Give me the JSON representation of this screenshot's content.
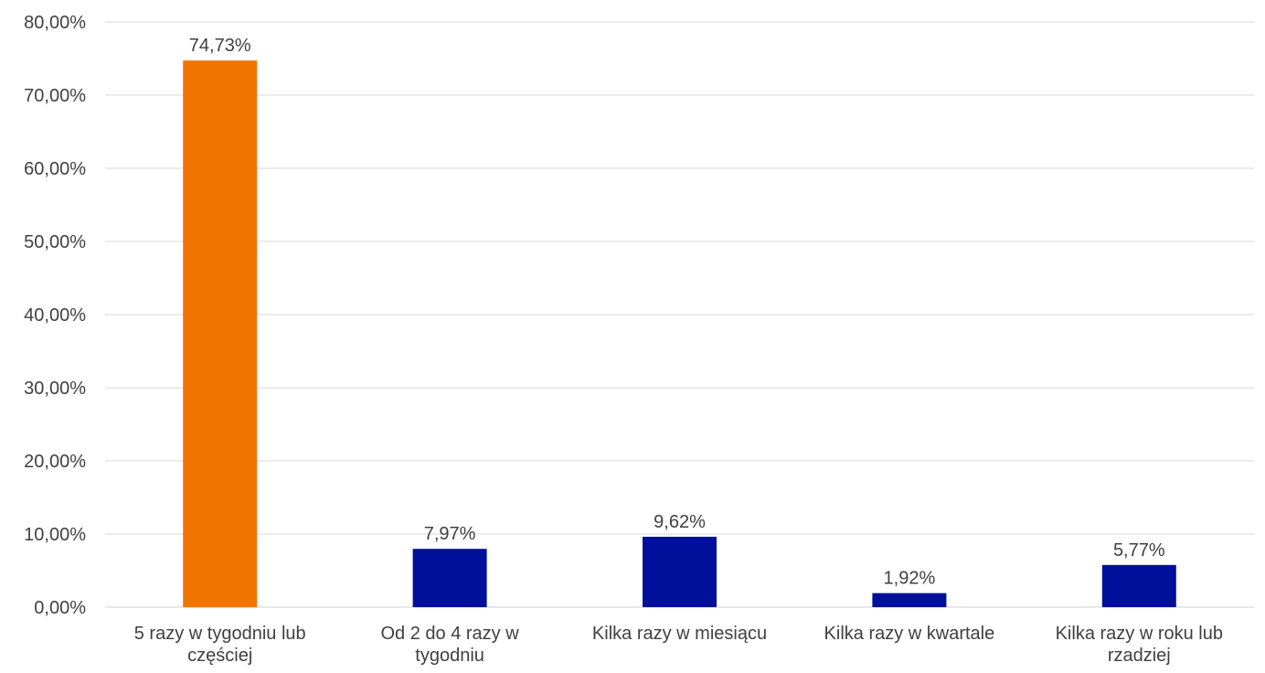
{
  "chart_data": {
    "type": "bar",
    "title": "",
    "xlabel": "",
    "ylabel": "",
    "ylim": [
      0,
      80
    ],
    "ytick_values": [
      0,
      10,
      20,
      30,
      40,
      50,
      60,
      70,
      80
    ],
    "ytick_labels": [
      "0,00%",
      "10,00%",
      "20,00%",
      "30,00%",
      "40,00%",
      "50,00%",
      "60,00%",
      "70,00%",
      "80,00%"
    ],
    "categories": [
      [
        "5 razy w tygodniu lub",
        "częściej"
      ],
      [
        "Od 2 do 4 razy w",
        "tygodniu"
      ],
      [
        "Kilka razy w miesiącu"
      ],
      [
        "Kilka razy w kwartale"
      ],
      [
        "Kilka razy w roku lub",
        "rzadziej"
      ]
    ],
    "values": [
      74.73,
      7.97,
      9.62,
      1.92,
      5.77
    ],
    "data_labels": [
      "74,73%",
      "7,97%",
      "9,62%",
      "1,92%",
      "5,77%"
    ],
    "bar_colors": [
      "#f07400",
      "#00109a",
      "#00109a",
      "#00109a",
      "#00109a"
    ],
    "grid": true,
    "legend": "none"
  }
}
